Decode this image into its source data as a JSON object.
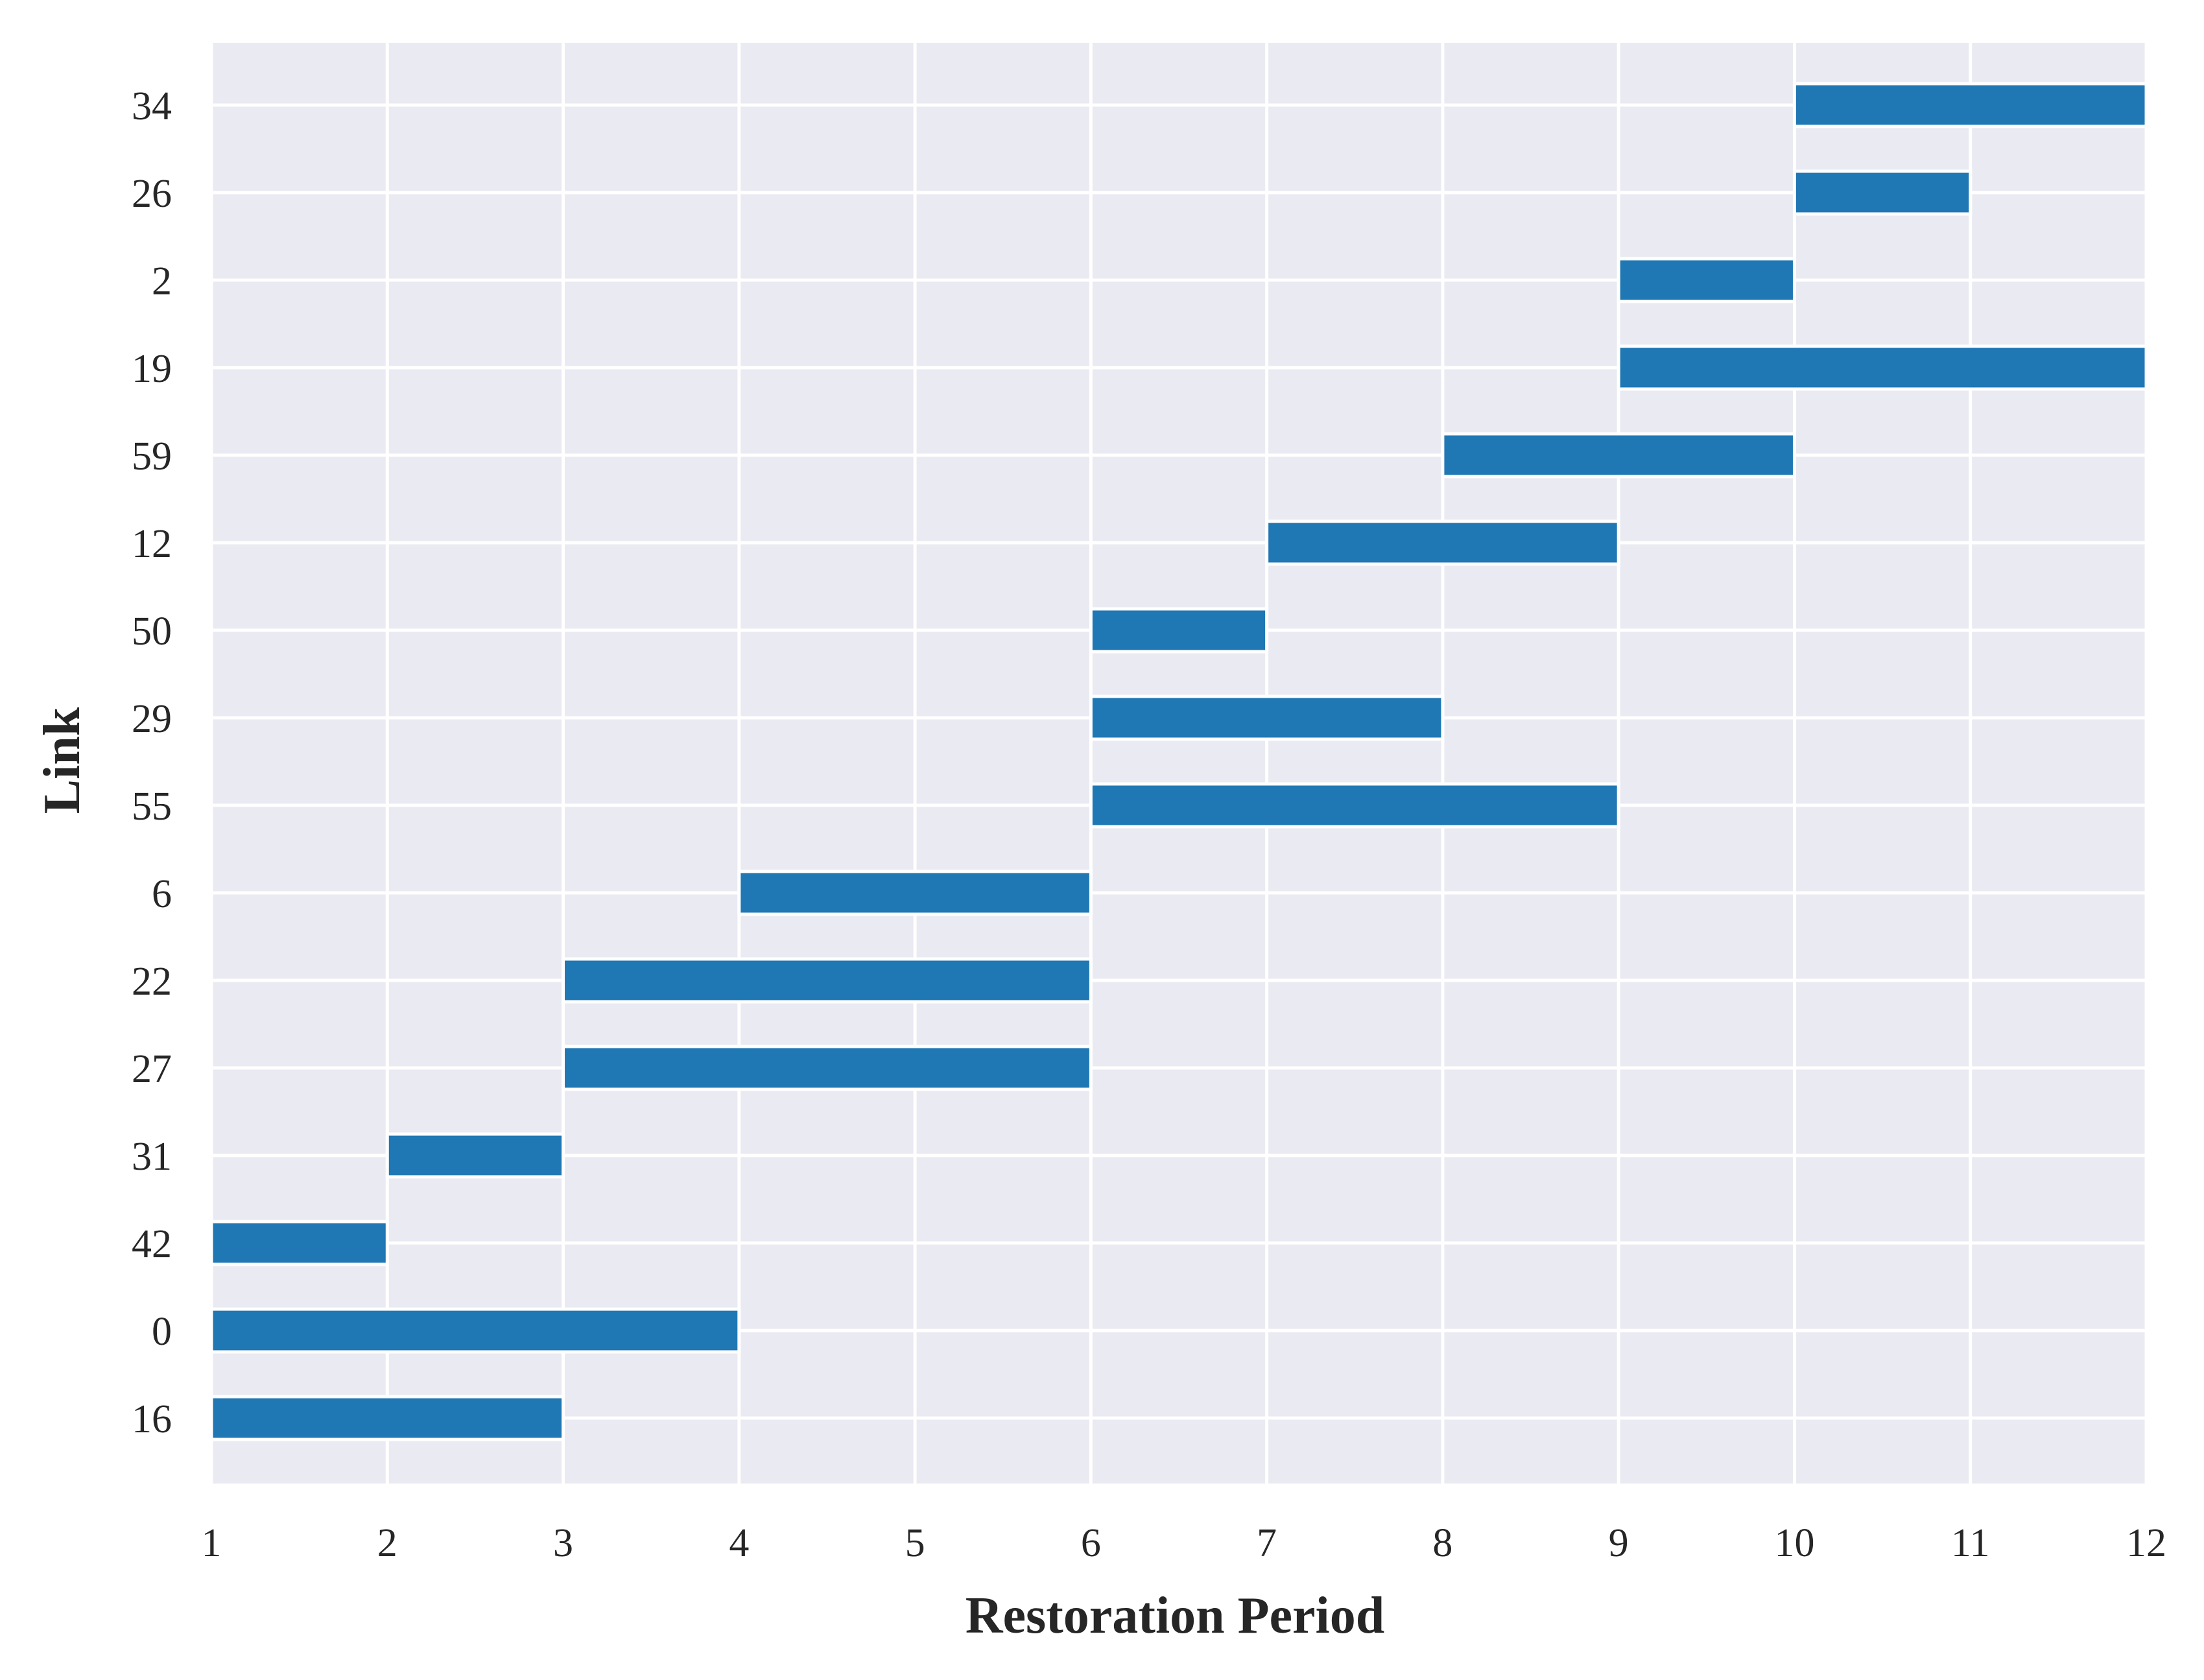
{
  "chart_data": {
    "type": "bar",
    "orientation": "horizontal",
    "xlabel": "Restoration Period",
    "ylabel": "Link",
    "xlim": [
      1,
      12
    ],
    "x_ticks": [
      1,
      2,
      3,
      4,
      5,
      6,
      7,
      8,
      9,
      10,
      11,
      12
    ],
    "grid": true,
    "colors": {
      "bar": "#1f77b4",
      "background": "#eaeaf2",
      "grid": "#ffffff",
      "text": "#262626"
    },
    "categories": [
      "16",
      "0",
      "42",
      "31",
      "27",
      "22",
      "6",
      "55",
      "29",
      "50",
      "12",
      "59",
      "19",
      "2",
      "26",
      "34"
    ],
    "bars": [
      {
        "link": "16",
        "start": 1,
        "end": 3
      },
      {
        "link": "0",
        "start": 1,
        "end": 4
      },
      {
        "link": "42",
        "start": 1,
        "end": 2
      },
      {
        "link": "31",
        "start": 2,
        "end": 3
      },
      {
        "link": "27",
        "start": 3,
        "end": 6
      },
      {
        "link": "22",
        "start": 3,
        "end": 6
      },
      {
        "link": "6",
        "start": 4,
        "end": 6
      },
      {
        "link": "55",
        "start": 6,
        "end": 9
      },
      {
        "link": "29",
        "start": 6,
        "end": 8
      },
      {
        "link": "50",
        "start": 6,
        "end": 7
      },
      {
        "link": "12",
        "start": 7,
        "end": 9
      },
      {
        "link": "59",
        "start": 8,
        "end": 10
      },
      {
        "link": "19",
        "start": 9,
        "end": 12
      },
      {
        "link": "2",
        "start": 9,
        "end": 10
      },
      {
        "link": "26",
        "start": 10,
        "end": 11
      },
      {
        "link": "34",
        "start": 10,
        "end": 12
      }
    ]
  }
}
